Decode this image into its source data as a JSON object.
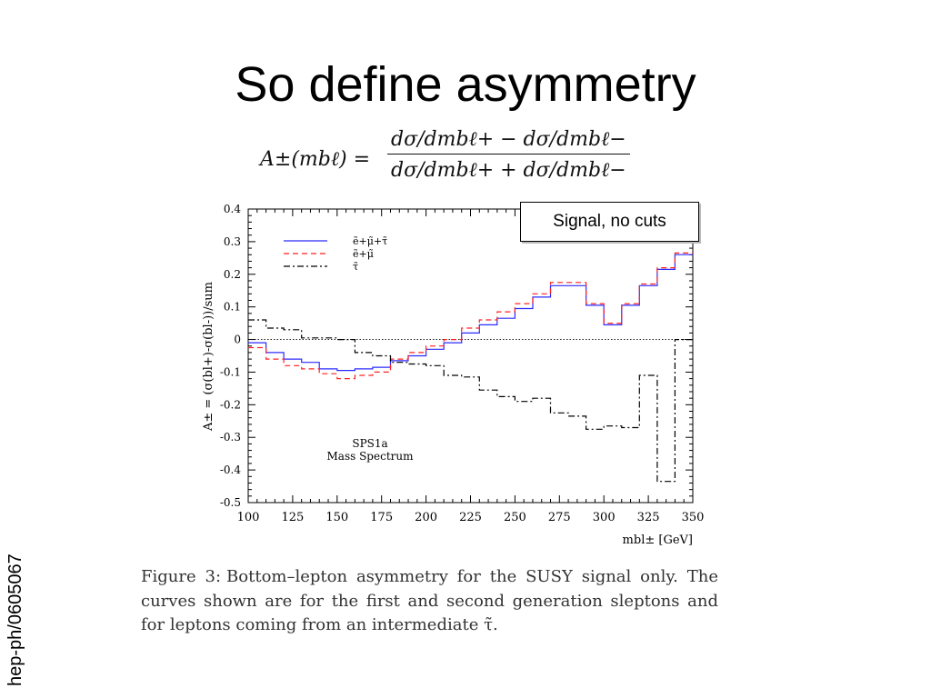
{
  "slide": {
    "title": "So define asymmetry",
    "side_label": "hep-ph/0605067",
    "annotation": "Signal, no cuts"
  },
  "formula": {
    "lhs": "A±(mbℓ) =",
    "numerator": "dσ/dmbℓ+ − dσ/dmbℓ−",
    "denominator": "dσ/dmbℓ+ + dσ/dmbℓ−"
  },
  "caption": {
    "label": "Figure 3:",
    "text": "Bottom–lepton asymmetry for the SUSY signal only. The curves shown are for the first and second generation sleptons and for leptons coming from an intermediate τ̃."
  },
  "chart_data": {
    "type": "line",
    "step": true,
    "xlabel": "mbl± [GeV]",
    "ylabel": "A± = (σ(bl+)-σ(bl-))/sum",
    "xlim": [
      100,
      350
    ],
    "ylim": [
      -0.5,
      0.4
    ],
    "xticks": [
      "100",
      "125",
      "150",
      "175",
      "200",
      "225",
      "250",
      "275",
      "300",
      "325",
      "350"
    ],
    "yticks": [
      "-0.5",
      "-0.4",
      "-0.3",
      "-0.2",
      "-0.1",
      "0",
      "0.1",
      "0.2",
      "0.3",
      "0.4"
    ],
    "bin_edges": [
      100,
      110,
      120,
      130,
      140,
      150,
      160,
      170,
      180,
      190,
      200,
      210,
      220,
      230,
      240,
      250,
      260,
      270,
      280,
      290,
      300,
      310,
      320,
      330,
      340,
      350
    ],
    "series": [
      {
        "name": "ẽ+μ̃+τ̃",
        "color": "#2b2bff",
        "dash": "solid",
        "values": [
          -0.01,
          -0.04,
          -0.06,
          -0.07,
          -0.09,
          -0.095,
          -0.09,
          -0.085,
          -0.065,
          -0.05,
          -0.03,
          -0.01,
          0.02,
          0.045,
          0.065,
          0.095,
          0.13,
          0.165,
          0.165,
          0.105,
          0.045,
          0.105,
          0.165,
          0.215,
          0.26
        ]
      },
      {
        "name": "ẽ+μ̃",
        "color": "#ff2020",
        "dash": "dashed",
        "values": [
          -0.025,
          -0.06,
          -0.08,
          -0.09,
          -0.105,
          -0.12,
          -0.11,
          -0.1,
          -0.06,
          -0.04,
          -0.02,
          0.0,
          0.035,
          0.06,
          0.085,
          0.11,
          0.14,
          0.175,
          0.175,
          0.11,
          0.05,
          0.11,
          0.17,
          0.22,
          0.265
        ]
      },
      {
        "name": "τ̃",
        "color": "#000000",
        "dash": "dashdot",
        "values": [
          0.06,
          0.035,
          0.03,
          0.005,
          0.005,
          0.0,
          -0.04,
          -0.05,
          -0.07,
          -0.075,
          -0.08,
          -0.11,
          -0.115,
          -0.155,
          -0.175,
          -0.19,
          -0.18,
          -0.225,
          -0.235,
          -0.275,
          -0.265,
          -0.27,
          -0.11,
          -0.435,
          0.0
        ]
      }
    ],
    "annotations": [
      "SPS1a",
      "Mass Spectrum"
    ],
    "reference_line_y": 0,
    "legend_position": "top-left",
    "grid": false
  }
}
